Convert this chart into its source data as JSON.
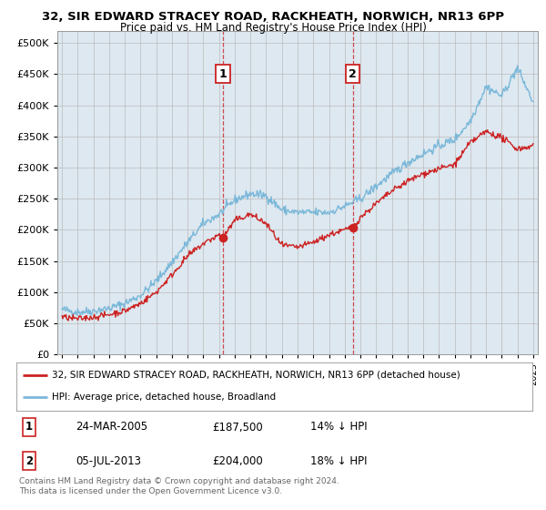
{
  "title1": "32, SIR EDWARD STRACEY ROAD, RACKHEATH, NORWICH, NR13 6PP",
  "title2": "Price paid vs. HM Land Registry's House Price Index (HPI)",
  "ytick_values": [
    0,
    50000,
    100000,
    150000,
    200000,
    250000,
    300000,
    350000,
    400000,
    450000,
    500000
  ],
  "ylim": [
    0,
    520000
  ],
  "hpi_color": "#7ab8d9",
  "price_color": "#cc2222",
  "background_color": "#dde8f0",
  "grid_color": "#bbbbbb",
  "annotation1": {
    "label": "1",
    "x_year": 2005.23,
    "y_val": 187500
  },
  "annotation2": {
    "label": "2",
    "x_year": 2013.51,
    "y_val": 204000
  },
  "legend_line1": "32, SIR EDWARD STRACEY ROAD, RACKHEATH, NORWICH, NR13 6PP (detached house)",
  "legend_line2": "HPI: Average price, detached house, Broadland",
  "footnote1": "Contains HM Land Registry data © Crown copyright and database right 2024.",
  "footnote2": "This data is licensed under the Open Government Licence v3.0.",
  "table_rows": [
    [
      "1",
      "24-MAR-2005",
      "£187,500",
      "14% ↓ HPI"
    ],
    [
      "2",
      "05-JUL-2013",
      "£204,000",
      "18% ↓ HPI"
    ]
  ],
  "xmin": 1994.7,
  "xmax": 2025.3,
  "waypoints_hpi_x": [
    1995,
    1996,
    1997,
    1998,
    1999,
    2000,
    2001,
    2002,
    2003,
    2004,
    2005,
    2006,
    2007,
    2008,
    2009,
    2010,
    2011,
    2012,
    2013,
    2014,
    2015,
    2016,
    2017,
    2018,
    2019,
    2020,
    2021,
    2022,
    2023,
    2024,
    2025
  ],
  "waypoints_hpi_y": [
    72000,
    68000,
    70000,
    74000,
    82000,
    95000,
    118000,
    148000,
    180000,
    210000,
    225000,
    248000,
    258000,
    255000,
    232000,
    228000,
    228000,
    228000,
    238000,
    250000,
    270000,
    290000,
    308000,
    322000,
    335000,
    345000,
    375000,
    430000,
    415000,
    460000,
    405000
  ],
  "waypoints_price_x": [
    1995,
    1996,
    1997,
    1998,
    1999,
    2000,
    2001,
    2002,
    2003,
    2004,
    2005,
    2005.23,
    2006,
    2007,
    2008,
    2009,
    2010,
    2011,
    2012,
    2013,
    2013.51,
    2014,
    2015,
    2016,
    2017,
    2018,
    2019,
    2020,
    2021,
    2022,
    2023,
    2024,
    2025
  ],
  "waypoints_price_y": [
    60000,
    57000,
    60000,
    64000,
    70000,
    82000,
    100000,
    128000,
    158000,
    178000,
    192000,
    187500,
    215000,
    225000,
    210000,
    175000,
    172000,
    180000,
    192000,
    200000,
    204000,
    220000,
    242000,
    262000,
    278000,
    290000,
    298000,
    305000,
    340000,
    358000,
    348000,
    330000,
    335000
  ]
}
